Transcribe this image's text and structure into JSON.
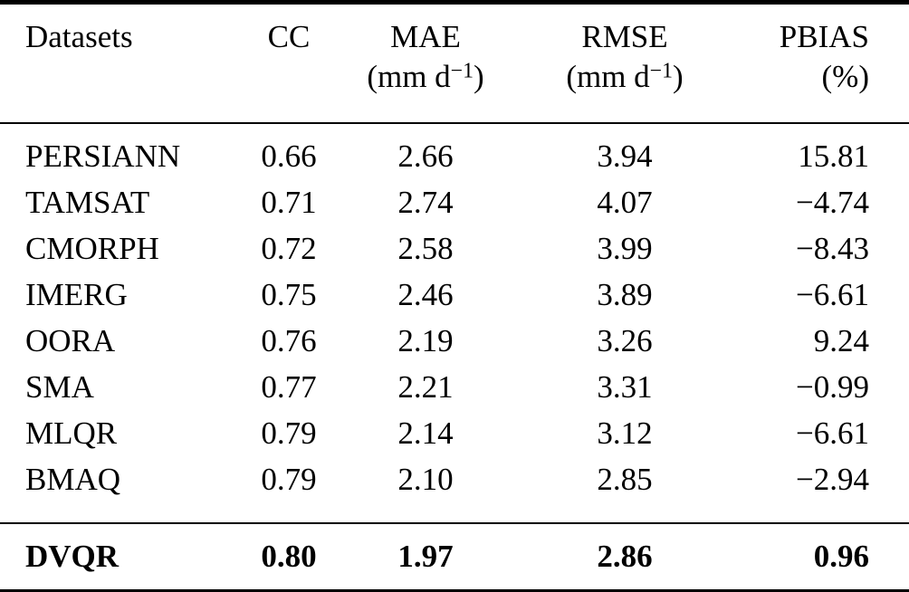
{
  "table": {
    "columns": [
      {
        "label": "Datasets"
      },
      {
        "label": "CC"
      },
      {
        "label": "MAE",
        "unit_open": "(mm d",
        "unit_sup": "−1",
        "unit_close": ")"
      },
      {
        "label": "RMSE",
        "unit_open": "(mm d",
        "unit_sup": "−1",
        "unit_close": ")"
      },
      {
        "label": "PBIAS",
        "unit": "(%)"
      }
    ],
    "rows": [
      {
        "dataset": "PERSIANN",
        "cc": "0.66",
        "mae": "2.66",
        "rmse": "3.94",
        "pbias": "15.81"
      },
      {
        "dataset": "TAMSAT",
        "cc": "0.71",
        "mae": "2.74",
        "rmse": "4.07",
        "pbias": "−4.74"
      },
      {
        "dataset": "CMORPH",
        "cc": "0.72",
        "mae": "2.58",
        "rmse": "3.99",
        "pbias": "−8.43"
      },
      {
        "dataset": "IMERG",
        "cc": "0.75",
        "mae": "2.46",
        "rmse": "3.89",
        "pbias": "−6.61"
      },
      {
        "dataset": "OORA",
        "cc": "0.76",
        "mae": "2.19",
        "rmse": "3.26",
        "pbias": "9.24"
      },
      {
        "dataset": "SMA",
        "cc": "0.77",
        "mae": "2.21",
        "rmse": "3.31",
        "pbias": "−0.99"
      },
      {
        "dataset": "MLQR",
        "cc": "0.79",
        "mae": "2.14",
        "rmse": "3.12",
        "pbias": "−6.61"
      },
      {
        "dataset": "BMAQ",
        "cc": "0.79",
        "mae": "2.10",
        "rmse": "2.85",
        "pbias": "−2.94"
      }
    ],
    "summary_row": {
      "dataset": "DVQR",
      "cc": "0.80",
      "mae": "1.97",
      "rmse": "2.86",
      "pbias": "0.96"
    }
  }
}
